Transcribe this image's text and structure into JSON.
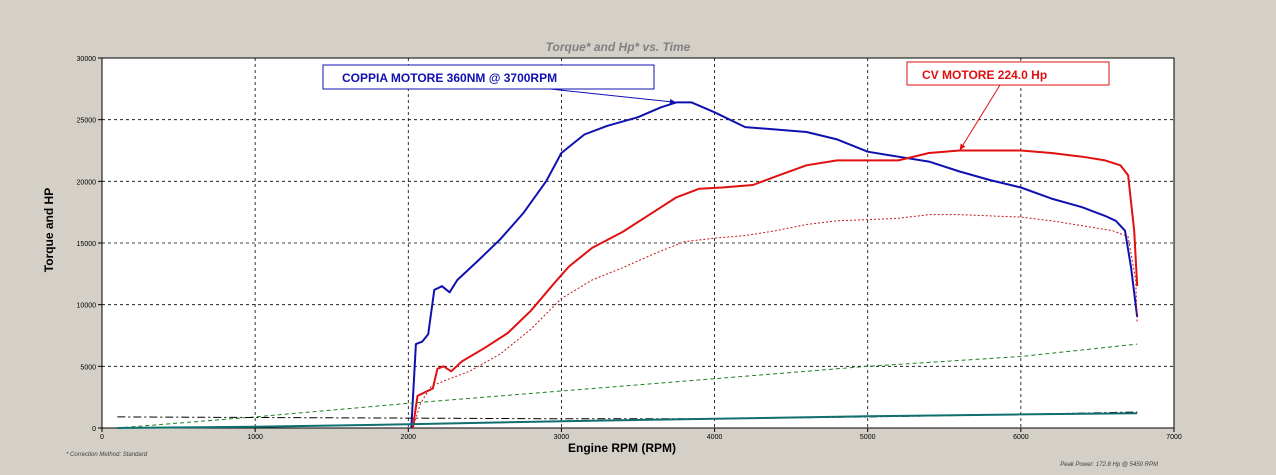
{
  "chart_data": {
    "type": "line",
    "title": "Torque* and Hp* vs. Time",
    "xlabel": "Engine RPM (RPM)",
    "ylabel": "Torque and HP",
    "xlim": [
      0,
      7000
    ],
    "ylim": [
      0,
      30000
    ],
    "x_ticks": [
      "0",
      "1000",
      "2000",
      "3000",
      "4000",
      "5000",
      "6000",
      "7000"
    ],
    "y_ticks": [
      "0",
      "5000",
      "10000",
      "15000",
      "20000",
      "25000",
      "30000"
    ],
    "grid": true,
    "series": [
      {
        "color": "#1010b0",
        "style": "solid",
        "width": 2,
        "points": [
          [
            2020,
            0
          ],
          [
            2050,
            6800
          ],
          [
            2090,
            7000
          ],
          [
            2130,
            7600
          ],
          [
            2170,
            11200
          ],
          [
            2220,
            11500
          ],
          [
            2270,
            11000
          ],
          [
            2320,
            12000
          ],
          [
            2450,
            13500
          ],
          [
            2600,
            15300
          ],
          [
            2750,
            17400
          ],
          [
            2900,
            20000
          ],
          [
            3000,
            22300
          ],
          [
            3150,
            23800
          ],
          [
            3300,
            24500
          ],
          [
            3500,
            25200
          ],
          [
            3650,
            26000
          ],
          [
            3750,
            26400
          ],
          [
            3850,
            26400
          ],
          [
            4000,
            25600
          ],
          [
            4200,
            24400
          ],
          [
            4400,
            24200
          ],
          [
            4600,
            24000
          ],
          [
            4800,
            23400
          ],
          [
            5000,
            22400
          ],
          [
            5200,
            22000
          ],
          [
            5400,
            21600
          ],
          [
            5600,
            20800
          ],
          [
            5800,
            20100
          ],
          [
            6000,
            19500
          ],
          [
            6200,
            18600
          ],
          [
            6400,
            17900
          ],
          [
            6550,
            17200
          ],
          [
            6620,
            16800
          ],
          [
            6680,
            16000
          ],
          [
            6720,
            13000
          ],
          [
            6760,
            9000
          ]
        ]
      },
      {
        "color": "#e01010",
        "style": "solid",
        "width": 2,
        "points": [
          [
            2030,
            0
          ],
          [
            2060,
            2600
          ],
          [
            2110,
            2900
          ],
          [
            2160,
            3200
          ],
          [
            2190,
            4800
          ],
          [
            2230,
            5000
          ],
          [
            2280,
            4600
          ],
          [
            2350,
            5400
          ],
          [
            2500,
            6500
          ],
          [
            2650,
            7700
          ],
          [
            2800,
            9500
          ],
          [
            2950,
            11700
          ],
          [
            3050,
            13100
          ],
          [
            3200,
            14600
          ],
          [
            3400,
            15900
          ],
          [
            3600,
            17500
          ],
          [
            3750,
            18700
          ],
          [
            3900,
            19400
          ],
          [
            4050,
            19500
          ],
          [
            4250,
            19700
          ],
          [
            4400,
            20400
          ],
          [
            4600,
            21300
          ],
          [
            4800,
            21700
          ],
          [
            5000,
            21700
          ],
          [
            5200,
            21700
          ],
          [
            5400,
            22300
          ],
          [
            5600,
            22500
          ],
          [
            5800,
            22500
          ],
          [
            6000,
            22500
          ],
          [
            6200,
            22300
          ],
          [
            6400,
            22000
          ],
          [
            6550,
            21700
          ],
          [
            6650,
            21300
          ],
          [
            6700,
            20500
          ],
          [
            6740,
            16000
          ],
          [
            6760,
            11500
          ]
        ]
      },
      {
        "color": "#c01818",
        "style": "dotted",
        "width": 1,
        "points": [
          [
            2030,
            0
          ],
          [
            2080,
            2000
          ],
          [
            2150,
            3400
          ],
          [
            2250,
            3900
          ],
          [
            2400,
            4600
          ],
          [
            2600,
            6000
          ],
          [
            2800,
            8000
          ],
          [
            3000,
            10500
          ],
          [
            3200,
            12000
          ],
          [
            3400,
            13000
          ],
          [
            3600,
            14100
          ],
          [
            3800,
            15100
          ],
          [
            4000,
            15400
          ],
          [
            4200,
            15600
          ],
          [
            4400,
            16000
          ],
          [
            4600,
            16500
          ],
          [
            4800,
            16800
          ],
          [
            5000,
            16900
          ],
          [
            5200,
            17000
          ],
          [
            5400,
            17300
          ],
          [
            5600,
            17300
          ],
          [
            5800,
            17200
          ],
          [
            6000,
            17100
          ],
          [
            6200,
            16800
          ],
          [
            6400,
            16400
          ],
          [
            6600,
            16000
          ],
          [
            6700,
            15500
          ],
          [
            6750,
            12000
          ],
          [
            6760,
            8500
          ]
        ]
      },
      {
        "color": "#208020",
        "style": "dashed",
        "width": 1,
        "points": [
          [
            100,
            0
          ],
          [
            1000,
            900
          ],
          [
            2000,
            2000
          ],
          [
            3000,
            3000
          ],
          [
            4000,
            4000
          ],
          [
            5000,
            5000
          ],
          [
            6000,
            5800
          ],
          [
            6760,
            6800
          ]
        ]
      },
      {
        "color": "#000000",
        "style": "dashdot",
        "width": 1,
        "points": [
          [
            100,
            900
          ],
          [
            1000,
            850
          ],
          [
            2000,
            800
          ],
          [
            3000,
            750
          ],
          [
            4000,
            750
          ],
          [
            5000,
            900
          ],
          [
            6000,
            1100
          ],
          [
            6760,
            1300
          ]
        ]
      },
      {
        "color": "#107070",
        "style": "solid",
        "width": 2,
        "points": [
          [
            100,
            0
          ],
          [
            1000,
            100
          ],
          [
            2000,
            300
          ],
          [
            3000,
            550
          ],
          [
            4000,
            750
          ],
          [
            5000,
            950
          ],
          [
            6000,
            1100
          ],
          [
            6760,
            1200
          ]
        ]
      }
    ],
    "annotations": [
      {
        "text": "COPPIA MOTORE 360NM @ 3700RPM",
        "color": "#1010b0",
        "target": [
          3750,
          26400
        ]
      },
      {
        "text": "CV MOTORE 224.0 Hp",
        "color": "#e01010",
        "target": [
          5600,
          22500
        ]
      }
    ],
    "footnote_left": "* Correction Method: Standard",
    "footnote_right": "Peak Power: 172.8 Hp @ 5450 RPM"
  }
}
